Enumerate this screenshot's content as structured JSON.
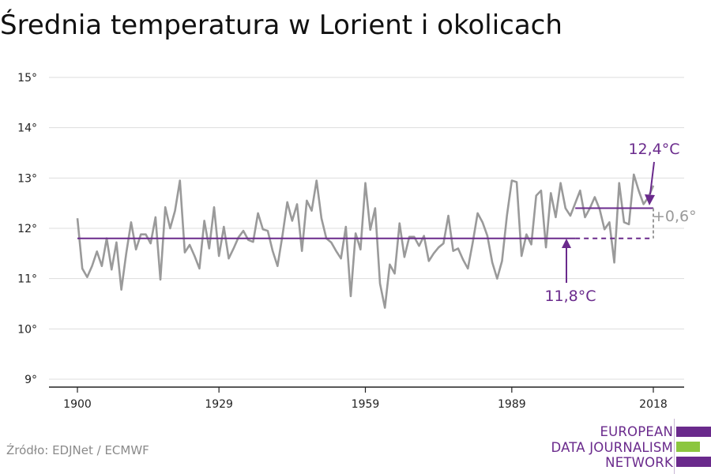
{
  "title": "Średnia temperatura w Lorient i okolicach",
  "source": "Źródło: EDJNet / ECMWF",
  "logo": {
    "lines": [
      "EUROPEAN",
      "DATA JOURNALISM",
      "NETWORK"
    ]
  },
  "colors": {
    "series": "#9a9a9a",
    "accent": "#6a2a8c",
    "logo_green": "#8cc63f",
    "grid": "#dddddd",
    "text": "#111111"
  },
  "chart_data": {
    "type": "line",
    "title": "Średnia temperatura w Lorient i okolicach",
    "xlabel": "",
    "ylabel": "",
    "xlim": [
      1900,
      2018
    ],
    "ylim": [
      9,
      15
    ],
    "grid": true,
    "x_ticks": [
      1900,
      1929,
      1959,
      1989,
      2018
    ],
    "x_tick_labels": [
      "1900",
      "1929",
      "1959",
      "1989",
      "2018"
    ],
    "y_ticks": [
      9,
      10,
      11,
      12,
      13,
      14,
      15
    ],
    "y_tick_labels": [
      "9°",
      "10°",
      "11°",
      "12°",
      "13°",
      "14°",
      "15°"
    ],
    "x": [
      1900,
      1901,
      1902,
      1903,
      1904,
      1905,
      1906,
      1907,
      1908,
      1909,
      1910,
      1911,
      1912,
      1913,
      1914,
      1915,
      1916,
      1917,
      1918,
      1919,
      1920,
      1921,
      1922,
      1923,
      1924,
      1925,
      1926,
      1927,
      1928,
      1929,
      1930,
      1931,
      1932,
      1933,
      1934,
      1935,
      1936,
      1937,
      1938,
      1939,
      1940,
      1941,
      1942,
      1943,
      1944,
      1945,
      1946,
      1947,
      1948,
      1949,
      1950,
      1951,
      1952,
      1953,
      1954,
      1955,
      1956,
      1957,
      1958,
      1959,
      1960,
      1961,
      1962,
      1963,
      1964,
      1965,
      1966,
      1967,
      1968,
      1969,
      1970,
      1971,
      1972,
      1973,
      1974,
      1975,
      1976,
      1977,
      1978,
      1979,
      1980,
      1981,
      1982,
      1983,
      1984,
      1985,
      1986,
      1987,
      1988,
      1989,
      1990,
      1991,
      1992,
      1993,
      1994,
      1995,
      1996,
      1997,
      1998,
      1999,
      2000,
      2001,
      2002,
      2003,
      2004,
      2005,
      2006,
      2007,
      2008,
      2009,
      2010,
      2011,
      2012,
      2013,
      2014,
      2015,
      2016,
      2017,
      2018
    ],
    "series": [
      {
        "values": [
          12.2,
          11.2,
          11.03,
          11.25,
          11.54,
          11.25,
          11.8,
          11.18,
          11.72,
          10.78,
          11.5,
          12.12,
          11.58,
          11.88,
          11.88,
          11.7,
          12.22,
          10.98,
          12.42,
          12.0,
          12.35,
          12.95,
          11.52,
          11.67,
          11.45,
          11.2,
          12.15,
          11.6,
          12.42,
          11.45,
          12.03,
          11.4,
          11.6,
          11.82,
          11.95,
          11.77,
          11.73,
          12.3,
          11.98,
          11.95,
          11.55,
          11.25,
          11.85,
          12.52,
          12.15,
          12.48,
          11.55,
          12.55,
          12.35,
          12.95,
          12.2,
          11.8,
          11.72,
          11.55,
          11.4,
          12.03,
          10.65,
          11.9,
          11.58,
          12.9,
          11.97,
          12.4,
          10.9,
          10.42,
          11.28,
          11.1,
          12.1,
          11.43,
          11.83,
          11.83,
          11.65,
          11.85,
          11.35,
          11.5,
          11.62,
          11.7,
          12.25,
          11.55,
          11.6,
          11.38,
          11.2,
          11.72,
          12.3,
          12.12,
          11.85,
          11.32,
          11.0,
          11.35,
          12.25,
          12.95,
          12.92,
          11.45,
          11.88,
          11.68,
          12.65,
          12.75,
          11.62,
          12.7,
          12.22,
          12.9,
          12.4,
          12.25,
          12.5,
          12.75,
          12.22,
          12.4,
          12.62,
          12.38,
          11.98,
          12.12,
          11.32,
          12.9,
          12.12,
          12.08,
          13.07,
          12.75,
          12.48,
          12.62,
          12.85
        ]
      }
    ],
    "reference_lines": [
      {
        "label": "11,8°C",
        "value": 11.8,
        "x_start": 1900,
        "x_end": 2018
      },
      {
        "label": "12,4°C",
        "value": 12.4,
        "x_start": 2002,
        "x_end": 2018
      }
    ],
    "annotations": {
      "difference": "+0,6°"
    }
  }
}
